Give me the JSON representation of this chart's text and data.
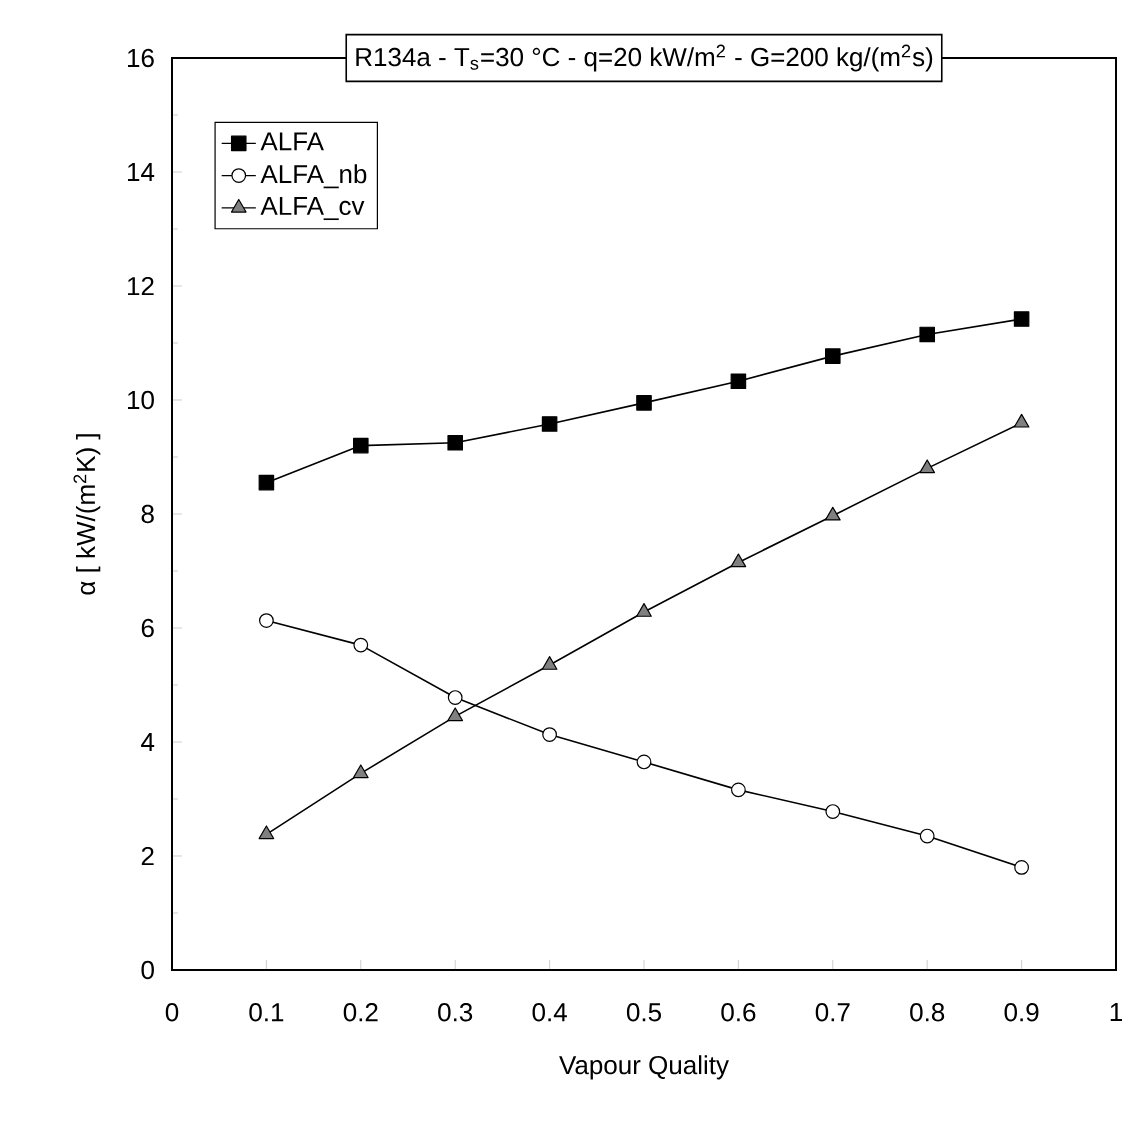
{
  "chart_data": {
    "type": "line",
    "title": "R134a - T$_{s}$=30 °C - q=20 kW/m$^{2}$ - G=200 kg/(m$^{2}$s)",
    "xlabel": "Vapour Quality",
    "ylabel": "α  [ kW/(m$^{2}$K) ]",
    "x": [
      0.1,
      0.2,
      0.3,
      0.4,
      0.5,
      0.6,
      0.7,
      0.8,
      0.9
    ],
    "series": [
      {
        "name": "ALFA",
        "color": "#000000",
        "marker": "square",
        "values": [
          8.55,
          9.2,
          9.25,
          9.58,
          9.95,
          10.33,
          10.77,
          11.15,
          11.42
        ]
      },
      {
        "name": "ALFA_nb",
        "color": "#ffffff",
        "marker": "circle",
        "values": [
          6.13,
          5.7,
          4.78,
          4.13,
          3.65,
          3.16,
          2.78,
          2.35,
          1.8
        ]
      },
      {
        "name": "ALFA_cv",
        "color": "#808080",
        "marker": "triangle",
        "values": [
          2.38,
          3.45,
          4.45,
          5.35,
          6.28,
          7.15,
          7.97,
          8.8,
          9.6
        ]
      }
    ],
    "xlim": [
      0,
      1
    ],
    "xticks": [
      0,
      0.1,
      0.2,
      0.3,
      0.4,
      0.5,
      0.6,
      0.7,
      0.8,
      0.9,
      1
    ],
    "ylim": [
      0,
      16
    ],
    "yticks": [
      0,
      2,
      4,
      6,
      8,
      10,
      12,
      14,
      16
    ],
    "grid": false,
    "legend": "top left",
    "line_style": "solid"
  }
}
